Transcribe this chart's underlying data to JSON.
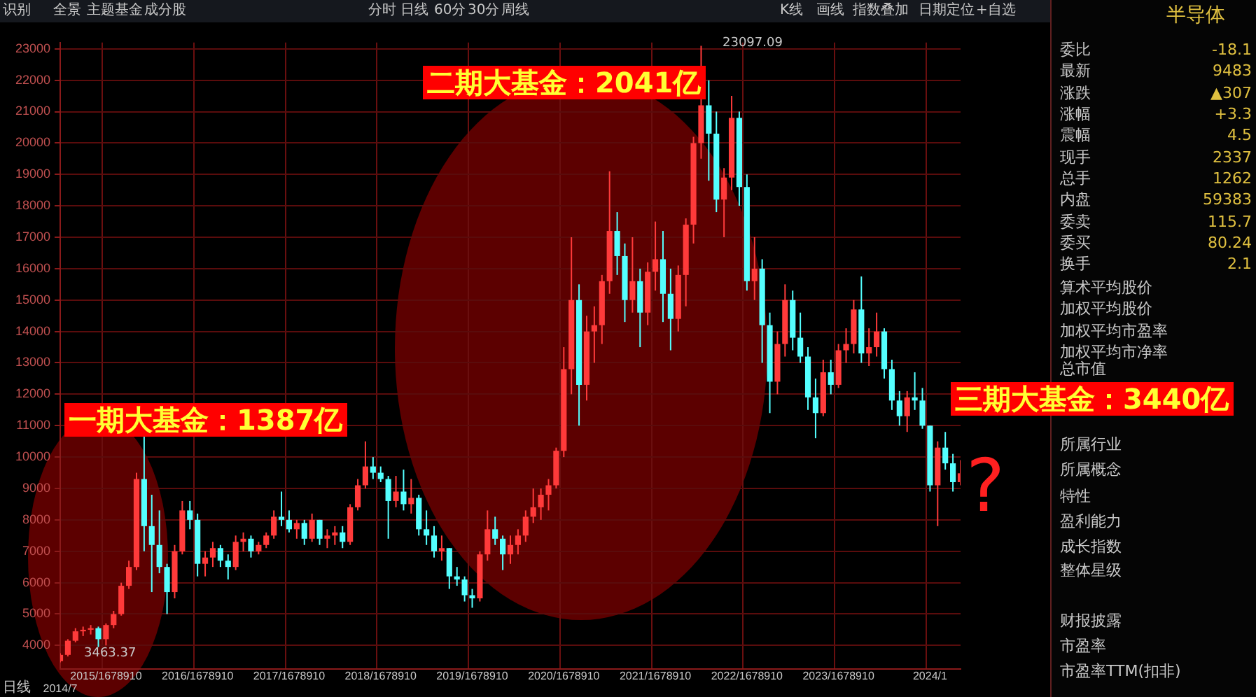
{
  "chart_data": {
    "type": "candlestick",
    "categories": [
      "2014/7",
      null,
      null,
      null,
      null,
      null,
      "2015/1678910",
      null,
      null,
      null,
      null,
      null,
      null,
      null,
      null,
      null,
      null,
      null,
      "2016/1678910",
      null,
      null,
      null,
      null,
      null,
      null,
      null,
      null,
      null,
      null,
      null,
      "2017/1678910",
      null,
      null,
      null,
      null,
      null,
      null,
      null,
      null,
      null,
      null,
      null,
      "2018/1678910",
      null,
      null,
      null,
      null,
      null,
      null,
      null,
      null,
      null,
      null,
      null,
      "2019/1678910",
      null,
      null,
      null,
      null,
      null,
      null,
      null,
      null,
      null,
      null,
      null,
      "2020/1678910",
      null,
      null,
      null,
      null,
      null,
      null,
      null,
      null,
      null,
      null,
      null,
      "2021/1678910",
      null,
      null,
      null,
      null,
      null,
      null,
      null,
      null,
      null,
      null,
      null,
      "2022/1678910",
      null,
      null,
      null,
      null,
      null,
      null,
      null,
      null,
      null,
      null,
      null,
      "2023/1678910",
      null,
      null,
      null,
      null,
      null,
      null,
      null,
      null,
      null,
      null,
      null,
      "2024/1",
      null,
      null,
      null,
      null
    ],
    "ohlc": [
      [
        3500,
        3750,
        3463.37,
        3700
      ],
      [
        3700,
        4200,
        3650,
        4150
      ],
      [
        4150,
        4550,
        4100,
        4450
      ],
      [
        4450,
        4600,
        4300,
        4500
      ],
      [
        4500,
        4650,
        4350,
        4550
      ],
      [
        4550,
        4600,
        3950,
        4200
      ],
      [
        4200,
        4700,
        4000,
        4650
      ],
      [
        4650,
        5100,
        4550,
        5000
      ],
      [
        5000,
        6000,
        4950,
        5900
      ],
      [
        5900,
        6700,
        5800,
        6500
      ],
      [
        6500,
        9500,
        6400,
        9300
      ],
      [
        9300,
        10700,
        7000,
        7800
      ],
      [
        7800,
        8800,
        5700,
        7200
      ],
      [
        7200,
        8300,
        6300,
        6500
      ],
      [
        6500,
        6600,
        5000,
        5700
      ],
      [
        5700,
        7200,
        5500,
        7000
      ],
      [
        7000,
        8600,
        6900,
        8300
      ],
      [
        8300,
        8600,
        7700,
        8000
      ],
      [
        8000,
        8200,
        6200,
        6600
      ],
      [
        6600,
        7000,
        6200,
        6800
      ],
      [
        6800,
        7300,
        6500,
        7100
      ],
      [
        7100,
        7200,
        6500,
        6700
      ],
      [
        6700,
        6900,
        6100,
        6500
      ],
      [
        6500,
        7500,
        6400,
        7300
      ],
      [
        7300,
        7600,
        7000,
        7400
      ],
      [
        7400,
        7500,
        6800,
        7000
      ],
      [
        7000,
        7300,
        6900,
        7200
      ],
      [
        7200,
        7600,
        7100,
        7500
      ],
      [
        7500,
        8300,
        7400,
        8100
      ],
      [
        8100,
        8900,
        7800,
        8000
      ],
      [
        8000,
        8300,
        7600,
        7700
      ],
      [
        7700,
        8000,
        7400,
        7900
      ],
      [
        7900,
        8000,
        7200,
        7400
      ],
      [
        7400,
        8200,
        7300,
        8000
      ],
      [
        8000,
        8000,
        7200,
        7400
      ],
      [
        7400,
        7700,
        7100,
        7500
      ],
      [
        7500,
        7800,
        7200,
        7600
      ],
      [
        7600,
        7800,
        7100,
        7300
      ],
      [
        7300,
        8500,
        7200,
        8400
      ],
      [
        8400,
        9300,
        8300,
        9100
      ],
      [
        9100,
        10500,
        9000,
        9700
      ],
      [
        9700,
        10000,
        9300,
        9500
      ],
      [
        9500,
        9700,
        9200,
        9300
      ],
      [
        9300,
        9400,
        7400,
        8600
      ],
      [
        8600,
        9400,
        8400,
        8900
      ],
      [
        8900,
        9600,
        8300,
        8500
      ],
      [
        8500,
        9300,
        8200,
        8700
      ],
      [
        8700,
        8800,
        7500,
        7700
      ],
      [
        7700,
        8300,
        7200,
        7500
      ],
      [
        7500,
        7800,
        6800,
        7000
      ],
      [
        7000,
        7500,
        6700,
        7100
      ],
      [
        7100,
        7100,
        5800,
        6200
      ],
      [
        6200,
        6500,
        5900,
        6100
      ],
      [
        6100,
        6200,
        5400,
        5600
      ],
      [
        5600,
        5800,
        5200,
        5500
      ],
      [
        5500,
        7000,
        5400,
        6900
      ],
      [
        6900,
        8300,
        6700,
        7700
      ],
      [
        7700,
        8100,
        7200,
        7400
      ],
      [
        7400,
        7500,
        6400,
        6900
      ],
      [
        6900,
        7500,
        6600,
        7200
      ],
      [
        7200,
        7700,
        6900,
        7500
      ],
      [
        7500,
        8300,
        7300,
        8100
      ],
      [
        8100,
        9000,
        7900,
        8400
      ],
      [
        8400,
        9000,
        8000,
        8800
      ],
      [
        8800,
        9300,
        8300,
        9100
      ],
      [
        9100,
        10300,
        9000,
        10200
      ],
      [
        10200,
        13500,
        10000,
        12800
      ],
      [
        12800,
        17000,
        12000,
        15000
      ],
      [
        15000,
        15500,
        11000,
        12300
      ],
      [
        12300,
        14500,
        11800,
        14000
      ],
      [
        14000,
        14800,
        13000,
        14200
      ],
      [
        14200,
        15800,
        13600,
        15600
      ],
      [
        15600,
        19100,
        15200,
        17200
      ],
      [
        17200,
        17800,
        15800,
        16400
      ],
      [
        16400,
        16800,
        14300,
        15000
      ],
      [
        15000,
        17000,
        14600,
        15600
      ],
      [
        15600,
        16000,
        13500,
        14600
      ],
      [
        14600,
        16200,
        14200,
        15900
      ],
      [
        15900,
        17500,
        15300,
        16300
      ],
      [
        16300,
        17200,
        14300,
        15200
      ],
      [
        15200,
        16000,
        13400,
        14400
      ],
      [
        14400,
        16100,
        14000,
        15800
      ],
      [
        15800,
        17600,
        14800,
        17400
      ],
      [
        17400,
        20200,
        16800,
        20000
      ],
      [
        20000,
        23097.09,
        19500,
        21200
      ],
      [
        21200,
        22000,
        18800,
        20300
      ],
      [
        20300,
        21000,
        17800,
        18200
      ],
      [
        18200,
        19200,
        17000,
        18900
      ],
      [
        18900,
        21500,
        18500,
        20800
      ],
      [
        20800,
        21000,
        18000,
        18600
      ],
      [
        18600,
        19000,
        15300,
        15600
      ],
      [
        15600,
        17000,
        15000,
        16000
      ],
      [
        16000,
        16300,
        13000,
        14200
      ],
      [
        14200,
        14600,
        11400,
        12400
      ],
      [
        12400,
        14000,
        12000,
        13600
      ],
      [
        13600,
        15500,
        13200,
        15000
      ],
      [
        15000,
        15300,
        13400,
        13800
      ],
      [
        13800,
        14600,
        13000,
        13200
      ],
      [
        13200,
        13500,
        11500,
        11900
      ],
      [
        11900,
        12500,
        10600,
        11400
      ],
      [
        11400,
        13100,
        11300,
        12700
      ],
      [
        12700,
        13100,
        12000,
        12300
      ],
      [
        12300,
        13600,
        12200,
        13400
      ],
      [
        13400,
        14100,
        13000,
        13600
      ],
      [
        13600,
        15000,
        13300,
        14700
      ],
      [
        14700,
        15750,
        13000,
        13300
      ],
      [
        13300,
        14100,
        12900,
        13500
      ],
      [
        13500,
        14600,
        13200,
        14000
      ],
      [
        14000,
        14100,
        12500,
        12800
      ],
      [
        12800,
        13100,
        11500,
        11800
      ],
      [
        11800,
        12100,
        11000,
        11300
      ],
      [
        11300,
        12100,
        10800,
        11900
      ],
      [
        11900,
        12700,
        11500,
        11800
      ],
      [
        11800,
        12200,
        10900,
        11000
      ],
      [
        11000,
        11000,
        8900,
        9100
      ],
      [
        9100,
        10500,
        7800,
        10300
      ],
      [
        10300,
        10800,
        9600,
        9800
      ],
      [
        9800,
        10100,
        8900,
        9200
      ],
      [
        9200,
        9900,
        9100,
        9483
      ]
    ],
    "ylim": [
      3250,
      23200
    ],
    "yticks": [
      4000,
      5000,
      6000,
      7000,
      8000,
      9000,
      10000,
      11000,
      12000,
      13000,
      14000,
      15000,
      16000,
      17000,
      18000,
      19000,
      20000,
      21000,
      22000,
      23000
    ],
    "grid": true,
    "annotations": [
      "一期大基金：1387亿",
      "二期大基金：2041亿",
      "三期大基金：3440亿",
      "?",
      "3463.37",
      "23097.09",
      "识别",
      "全景",
      "主题基金",
      "成分股",
      "分时",
      "日线",
      "60分",
      "30分",
      "周线",
      "K线",
      "画线",
      "指数叠加",
      "日期定位",
      "+自选",
      "日线",
      "半导体",
      "委比",
      "-18.1",
      "最新",
      "9483",
      "涨跌",
      "▲307",
      "涨幅",
      "+3.3",
      "震幅",
      "4.5",
      "现手",
      "2337",
      "总手",
      "1262",
      "内盘",
      "59383",
      "委卖",
      "115.7",
      "委买",
      "80.24",
      "换手",
      "2.1",
      "算术平均股价",
      "加权平均股价",
      "加权平均市盈率",
      "加权平均市净率",
      "总市值",
      "所属行业",
      "所属概念",
      "特性",
      "盈利能力",
      "成长指数",
      "整体星级",
      "财报披露",
      "市盈率",
      "市盈率TTM(扣非)"
    ]
  }
}
